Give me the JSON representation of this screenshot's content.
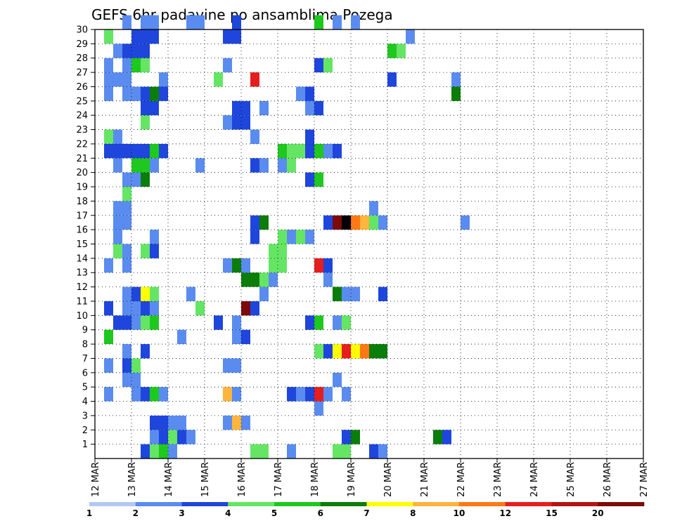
{
  "chart_data": {
    "type": "heatmap",
    "title": "GEFS 6hr padavine po ansamblima Pozega",
    "y_tick_labels": [
      "1",
      "2",
      "3",
      "4",
      "5",
      "6",
      "7",
      "8",
      "9",
      "10",
      "11",
      "12",
      "13",
      "14",
      "15",
      "16",
      "17",
      "18",
      "19",
      "20",
      "21",
      "22",
      "23",
      "24",
      "25",
      "26",
      "27",
      "28",
      "29",
      "30"
    ],
    "x_tick_labels": [
      "12 MAR",
      "13 MAR",
      "14 MAR",
      "15 MAR",
      "16 MAR",
      "17 MAR",
      "18 MAR",
      "19 MAR",
      "20 MAR",
      "21 MAR",
      "22 MAR",
      "23 MAR",
      "24 MAR",
      "25 MAR",
      "26 MAR",
      "27 MAR"
    ],
    "x_range": [
      0,
      60
    ],
    "y_range": [
      0,
      30
    ],
    "grid": true,
    "colorbar": {
      "labels": [
        "1",
        "2",
        "3",
        "4",
        "5",
        "6",
        "7",
        "8",
        "10",
        "12",
        "15",
        "20"
      ],
      "colors": [
        "#b4c8f5",
        "#5a8cf0",
        "#1e46dc",
        "#64e664",
        "#1ec81e",
        "#0a7d0a",
        "#ffff00",
        "#ffb43c",
        "#ff7814",
        "#e61e1e",
        "#b41414",
        "#7d0a0a"
      ],
      "position": "bottom"
    },
    "cells": [
      [
        5,
        0,
        2
      ],
      [
        6,
        0,
        3
      ],
      [
        7,
        0,
        4
      ],
      [
        8,
        0,
        1
      ],
      [
        17,
        0,
        3
      ],
      [
        18,
        0,
        3
      ],
      [
        21,
        0,
        1
      ],
      [
        26,
        0,
        3
      ],
      [
        27,
        0,
        3
      ],
      [
        30,
        0,
        2
      ],
      [
        31,
        0,
        1
      ],
      [
        6,
        1,
        1
      ],
      [
        7,
        1,
        2
      ],
      [
        8,
        1,
        3
      ],
      [
        9,
        1,
        2
      ],
      [
        10,
        1,
        1
      ],
      [
        27,
        1,
        2
      ],
      [
        28,
        1,
        5
      ],
      [
        37,
        1,
        5
      ],
      [
        38,
        1,
        2
      ],
      [
        6,
        2,
        2
      ],
      [
        7,
        2,
        2
      ],
      [
        8,
        2,
        1
      ],
      [
        9,
        2,
        1
      ],
      [
        14,
        2,
        1
      ],
      [
        15,
        2,
        7
      ],
      [
        16,
        2,
        1
      ],
      [
        24,
        3,
        1
      ],
      [
        1,
        4,
        1
      ],
      [
        4,
        4,
        1
      ],
      [
        5,
        4,
        2
      ],
      [
        6,
        4,
        4
      ],
      [
        7,
        4,
        1
      ],
      [
        14,
        4,
        7
      ],
      [
        15,
        4,
        1
      ],
      [
        21,
        4,
        2
      ],
      [
        22,
        4,
        1
      ],
      [
        23,
        4,
        2
      ],
      [
        24,
        4,
        9
      ],
      [
        25,
        4,
        1
      ],
      [
        27,
        4,
        1
      ],
      [
        3,
        5,
        1
      ],
      [
        4,
        5,
        1
      ],
      [
        26,
        5,
        1
      ],
      [
        1,
        6,
        1
      ],
      [
        3,
        6,
        2
      ],
      [
        4,
        6,
        3
      ],
      [
        14,
        6,
        1
      ],
      [
        15,
        6,
        1
      ],
      [
        3,
        7,
        1
      ],
      [
        5,
        7,
        2
      ],
      [
        24,
        7,
        3
      ],
      [
        25,
        7,
        2
      ],
      [
        26,
        7,
        6
      ],
      [
        27,
        7,
        9
      ],
      [
        28,
        7,
        6
      ],
      [
        29,
        7,
        8
      ],
      [
        30,
        7,
        5
      ],
      [
        31,
        7,
        5
      ],
      [
        1,
        8,
        4
      ],
      [
        9,
        8,
        1
      ],
      [
        15,
        8,
        1
      ],
      [
        16,
        8,
        2
      ],
      [
        2,
        9,
        2
      ],
      [
        3,
        9,
        2
      ],
      [
        4,
        9,
        1
      ],
      [
        5,
        9,
        3
      ],
      [
        6,
        9,
        4
      ],
      [
        13,
        9,
        2
      ],
      [
        15,
        9,
        1
      ],
      [
        23,
        9,
        2
      ],
      [
        24,
        9,
        4
      ],
      [
        26,
        9,
        1
      ],
      [
        27,
        9,
        3
      ],
      [
        1,
        10,
        2
      ],
      [
        3,
        10,
        1
      ],
      [
        4,
        10,
        1
      ],
      [
        5,
        10,
        2
      ],
      [
        6,
        10,
        1
      ],
      [
        11,
        10,
        3
      ],
      [
        16,
        10,
        11
      ],
      [
        17,
        10,
        2
      ],
      [
        3,
        11,
        1
      ],
      [
        4,
        11,
        2
      ],
      [
        5,
        11,
        6
      ],
      [
        6,
        11,
        3
      ],
      [
        10,
        11,
        1
      ],
      [
        18,
        11,
        1
      ],
      [
        26,
        11,
        5
      ],
      [
        27,
        11,
        1
      ],
      [
        28,
        11,
        1
      ],
      [
        31,
        11,
        2
      ],
      [
        16,
        12,
        5
      ],
      [
        17,
        12,
        5
      ],
      [
        18,
        12,
        3
      ],
      [
        19,
        12,
        1
      ],
      [
        25,
        12,
        1
      ],
      [
        1,
        13,
        1
      ],
      [
        3,
        13,
        1
      ],
      [
        14,
        13,
        1
      ],
      [
        15,
        13,
        5
      ],
      [
        16,
        13,
        1
      ],
      [
        19,
        13,
        3
      ],
      [
        20,
        13,
        3
      ],
      [
        24,
        13,
        9
      ],
      [
        25,
        13,
        2
      ],
      [
        2,
        14,
        3
      ],
      [
        3,
        14,
        1
      ],
      [
        5,
        14,
        3
      ],
      [
        6,
        14,
        2
      ],
      [
        19,
        14,
        3
      ],
      [
        20,
        14,
        3
      ],
      [
        2,
        15,
        1
      ],
      [
        6,
        15,
        1
      ],
      [
        17,
        15,
        2
      ],
      [
        20,
        15,
        3
      ],
      [
        21,
        15,
        1
      ],
      [
        22,
        15,
        3
      ],
      [
        23,
        15,
        1
      ],
      [
        2,
        16,
        1
      ],
      [
        3,
        16,
        1
      ],
      [
        17,
        16,
        2
      ],
      [
        18,
        16,
        5
      ],
      [
        25,
        16,
        2
      ],
      [
        26,
        16,
        11
      ],
      [
        27,
        16,
        12
      ],
      [
        28,
        16,
        8
      ],
      [
        29,
        16,
        7
      ],
      [
        30,
        16,
        3
      ],
      [
        31,
        16,
        1
      ],
      [
        40,
        16,
        1
      ],
      [
        2,
        17,
        1
      ],
      [
        3,
        17,
        1
      ],
      [
        30,
        17,
        1
      ],
      [
        3,
        18,
        3
      ],
      [
        3,
        19,
        1
      ],
      [
        4,
        19,
        1
      ],
      [
        5,
        19,
        5
      ],
      [
        23,
        19,
        2
      ],
      [
        24,
        19,
        4
      ],
      [
        2,
        20,
        1
      ],
      [
        4,
        20,
        4
      ],
      [
        5,
        20,
        4
      ],
      [
        6,
        20,
        1
      ],
      [
        11,
        20,
        1
      ],
      [
        17,
        20,
        2
      ],
      [
        18,
        20,
        1
      ],
      [
        20,
        20,
        1
      ],
      [
        21,
        20,
        3
      ],
      [
        1,
        21,
        2
      ],
      [
        2,
        21,
        2
      ],
      [
        3,
        21,
        2
      ],
      [
        4,
        21,
        2
      ],
      [
        5,
        21,
        2
      ],
      [
        6,
        21,
        4
      ],
      [
        7,
        21,
        2
      ],
      [
        20,
        21,
        4
      ],
      [
        21,
        21,
        3
      ],
      [
        22,
        21,
        3
      ],
      [
        23,
        21,
        2
      ],
      [
        24,
        21,
        4
      ],
      [
        25,
        21,
        1
      ],
      [
        26,
        21,
        2
      ],
      [
        1,
        22,
        3
      ],
      [
        2,
        22,
        1
      ],
      [
        17,
        22,
        1
      ],
      [
        23,
        22,
        2
      ],
      [
        5,
        23,
        3
      ],
      [
        14,
        23,
        1
      ],
      [
        15,
        23,
        2
      ],
      [
        16,
        23,
        2
      ],
      [
        5,
        24,
        2
      ],
      [
        6,
        24,
        2
      ],
      [
        15,
        24,
        2
      ],
      [
        16,
        24,
        2
      ],
      [
        18,
        24,
        1
      ],
      [
        23,
        24,
        1
      ],
      [
        24,
        24,
        2
      ],
      [
        1,
        25,
        1
      ],
      [
        3,
        25,
        1
      ],
      [
        4,
        25,
        1
      ],
      [
        5,
        25,
        2
      ],
      [
        6,
        25,
        5
      ],
      [
        7,
        25,
        2
      ],
      [
        22,
        25,
        1
      ],
      [
        23,
        25,
        2
      ],
      [
        39,
        25,
        5
      ],
      [
        1,
        26,
        1
      ],
      [
        2,
        26,
        1
      ],
      [
        3,
        26,
        1
      ],
      [
        7,
        26,
        1
      ],
      [
        13,
        26,
        3
      ],
      [
        17,
        26,
        9
      ],
      [
        32,
        26,
        2
      ],
      [
        39,
        26,
        1
      ],
      [
        1,
        27,
        1
      ],
      [
        3,
        27,
        1
      ],
      [
        4,
        27,
        4
      ],
      [
        5,
        27,
        3
      ],
      [
        14,
        27,
        1
      ],
      [
        24,
        27,
        2
      ],
      [
        25,
        27,
        3
      ],
      [
        2,
        28,
        1
      ],
      [
        3,
        28,
        2
      ],
      [
        4,
        28,
        2
      ],
      [
        5,
        28,
        2
      ],
      [
        32,
        28,
        4
      ],
      [
        33,
        28,
        3
      ],
      [
        1,
        29,
        3
      ],
      [
        4,
        29,
        2
      ],
      [
        5,
        29,
        2
      ],
      [
        6,
        29,
        2
      ],
      [
        14,
        29,
        2
      ],
      [
        15,
        29,
        2
      ],
      [
        34,
        29,
        1
      ],
      [
        3,
        30,
        1
      ],
      [
        5,
        30,
        1
      ],
      [
        6,
        30,
        1
      ],
      [
        10,
        30,
        1
      ],
      [
        11,
        30,
        1
      ],
      [
        15,
        30,
        2
      ],
      [
        24,
        30,
        4
      ],
      [
        26,
        30,
        1
      ],
      [
        28,
        30,
        1
      ]
    ]
  }
}
